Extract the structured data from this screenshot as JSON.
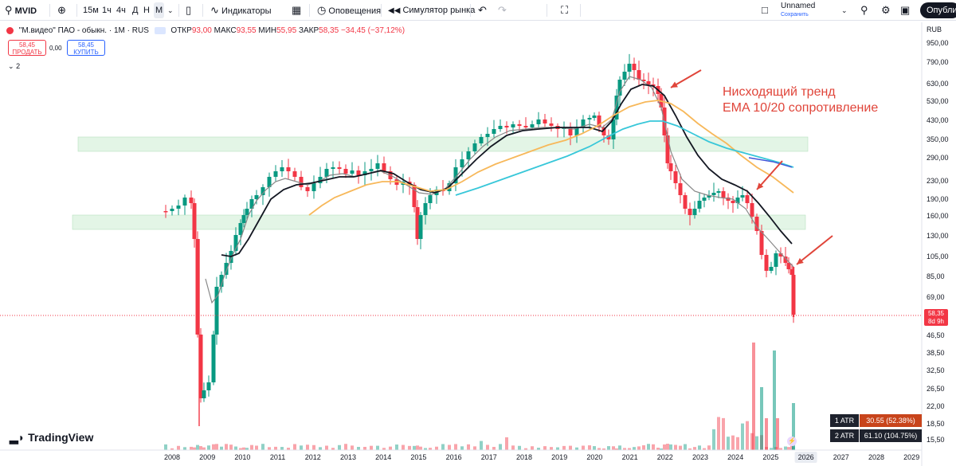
{
  "toolbar": {
    "symbol": "MVID",
    "intervals": [
      "15м",
      "1ч",
      "4ч",
      "Д",
      "Н",
      "М"
    ],
    "active_interval": "М",
    "indicators_label": "Индикаторы",
    "alerts_label": "Оповещения",
    "simulator_label": "Симулятор рынка",
    "layout_name": "Unnamed",
    "layout_status": "Сохранить",
    "publish_label": "Опублик"
  },
  "legend": {
    "title": "\"М.видео\" ПАО - обыкн. · 1М · RUS",
    "open_label": "ОТКР",
    "open": "93,00",
    "high_label": "МАКС",
    "high": "93,55",
    "low_label": "МИН",
    "low": "55,95",
    "close_label": "ЗАКР",
    "close": "58,35",
    "change": "−34,45 (−37,12%)",
    "sell_price": "58,45",
    "sell_label": "ПРОДАТЬ",
    "spread": "0,00",
    "buy_price": "58,45",
    "buy_label": "КУПИТЬ",
    "collapsed_count": "2"
  },
  "price_axis": {
    "currency": "RUB",
    "ticks": [
      "950,00",
      "790,00",
      "630,00",
      "530,00",
      "430,00",
      "350,00",
      "290,00",
      "230,00",
      "190,00",
      "160,00",
      "130,00",
      "105,00",
      "85,00",
      "69,00",
      "46,50",
      "38,50",
      "32,50",
      "26,50",
      "22,00",
      "18,50",
      "15,50"
    ],
    "last_price": "58,35",
    "countdown": "8d 9h"
  },
  "time_axis": {
    "years": [
      "2008",
      "2009",
      "2010",
      "2011",
      "2012",
      "2013",
      "2014",
      "2015",
      "2016",
      "2017",
      "2018",
      "2019",
      "2020",
      "2021",
      "2022",
      "2023",
      "2024",
      "2025",
      "2026",
      "2027",
      "2028",
      "2029"
    ],
    "highlighted_year": "2026"
  },
  "atr": [
    {
      "key": "1 ATR",
      "value": "30.55 (52.38%)",
      "color": "#c8441b"
    },
    {
      "key": "2 ATR",
      "value": "61.10 (104.75%)",
      "color": "#1e222d"
    }
  ],
  "annotation": {
    "line1": "Нисходящий тренд",
    "line2": "EMA 10/20 сопротивление"
  },
  "branding": "TradingView",
  "colors": {
    "up": "#089981",
    "down": "#f23645",
    "ema_fast": "#888888",
    "ema_slow": "#131722",
    "ma_orange": "#f7b85a",
    "ma_cyan": "#38c7d9",
    "zone": "#e3f5e6",
    "annotation": "#e0453a"
  }
}
